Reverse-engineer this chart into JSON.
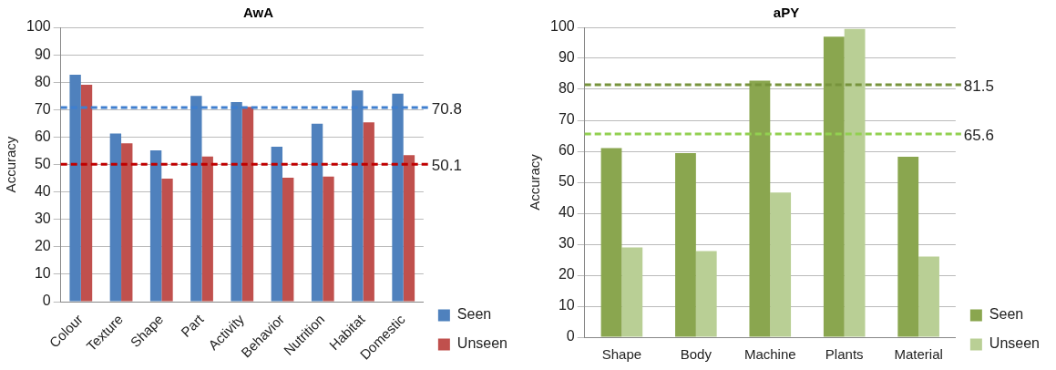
{
  "chart_data": [
    {
      "type": "bar",
      "title": "AwA",
      "ylabel": "Accuracy",
      "categories": [
        "Colour",
        "Texture",
        "Shape",
        "Part",
        "Activity",
        "Behavior",
        "Nutrition",
        "Habitat",
        "Domestic"
      ],
      "series": [
        {
          "name": "Seen",
          "color": "#4f81bd",
          "values": [
            82.7,
            61.3,
            55.2,
            75,
            72.8,
            56.5,
            64.9,
            77,
            75.8
          ]
        },
        {
          "name": "Unseen",
          "color": "#c0504d",
          "values": [
            79.1,
            57.7,
            44.9,
            52.9,
            71,
            45.2,
            45.6,
            65.4,
            53.4
          ]
        }
      ],
      "ylim": [
        0,
        100
      ],
      "yticks": [
        0,
        10,
        20,
        30,
        40,
        50,
        60,
        70,
        80,
        90,
        100
      ],
      "grid": "y",
      "legend": "bottom right",
      "ref_lines": [
        {
          "axis": "y",
          "value": 70.8,
          "label": "70.8",
          "color": "#3f7fcf",
          "line_style": "dashed"
        },
        {
          "axis": "y",
          "value": 50.1,
          "label": "50.1",
          "color": "#c00000",
          "line_style": "dashed"
        }
      ]
    },
    {
      "type": "bar",
      "title": "aPY",
      "ylabel": "Accuracy",
      "categories": [
        "Shape",
        "Body",
        "Machine",
        "Plants",
        "Material"
      ],
      "series": [
        {
          "name": "Seen",
          "color": "#8aa64f",
          "values": [
            61,
            59.4,
            82.8,
            97,
            58.2
          ]
        },
        {
          "name": "Unseen",
          "color": "#b9cf95",
          "values": [
            29,
            27.8,
            46.7,
            99.5,
            26
          ]
        }
      ],
      "ylim": [
        0,
        100
      ],
      "yticks": [
        0,
        10,
        20,
        30,
        40,
        50,
        60,
        70,
        80,
        90,
        100
      ],
      "grid": "y",
      "legend": "bottom right",
      "ref_lines": [
        {
          "axis": "y",
          "value": 81.5,
          "label": "81.5",
          "color": "#77933c",
          "line_style": "dashed"
        },
        {
          "axis": "y",
          "value": 65.6,
          "label": "65.6",
          "color": "#92d050",
          "line_style": "dashed"
        }
      ]
    }
  ]
}
